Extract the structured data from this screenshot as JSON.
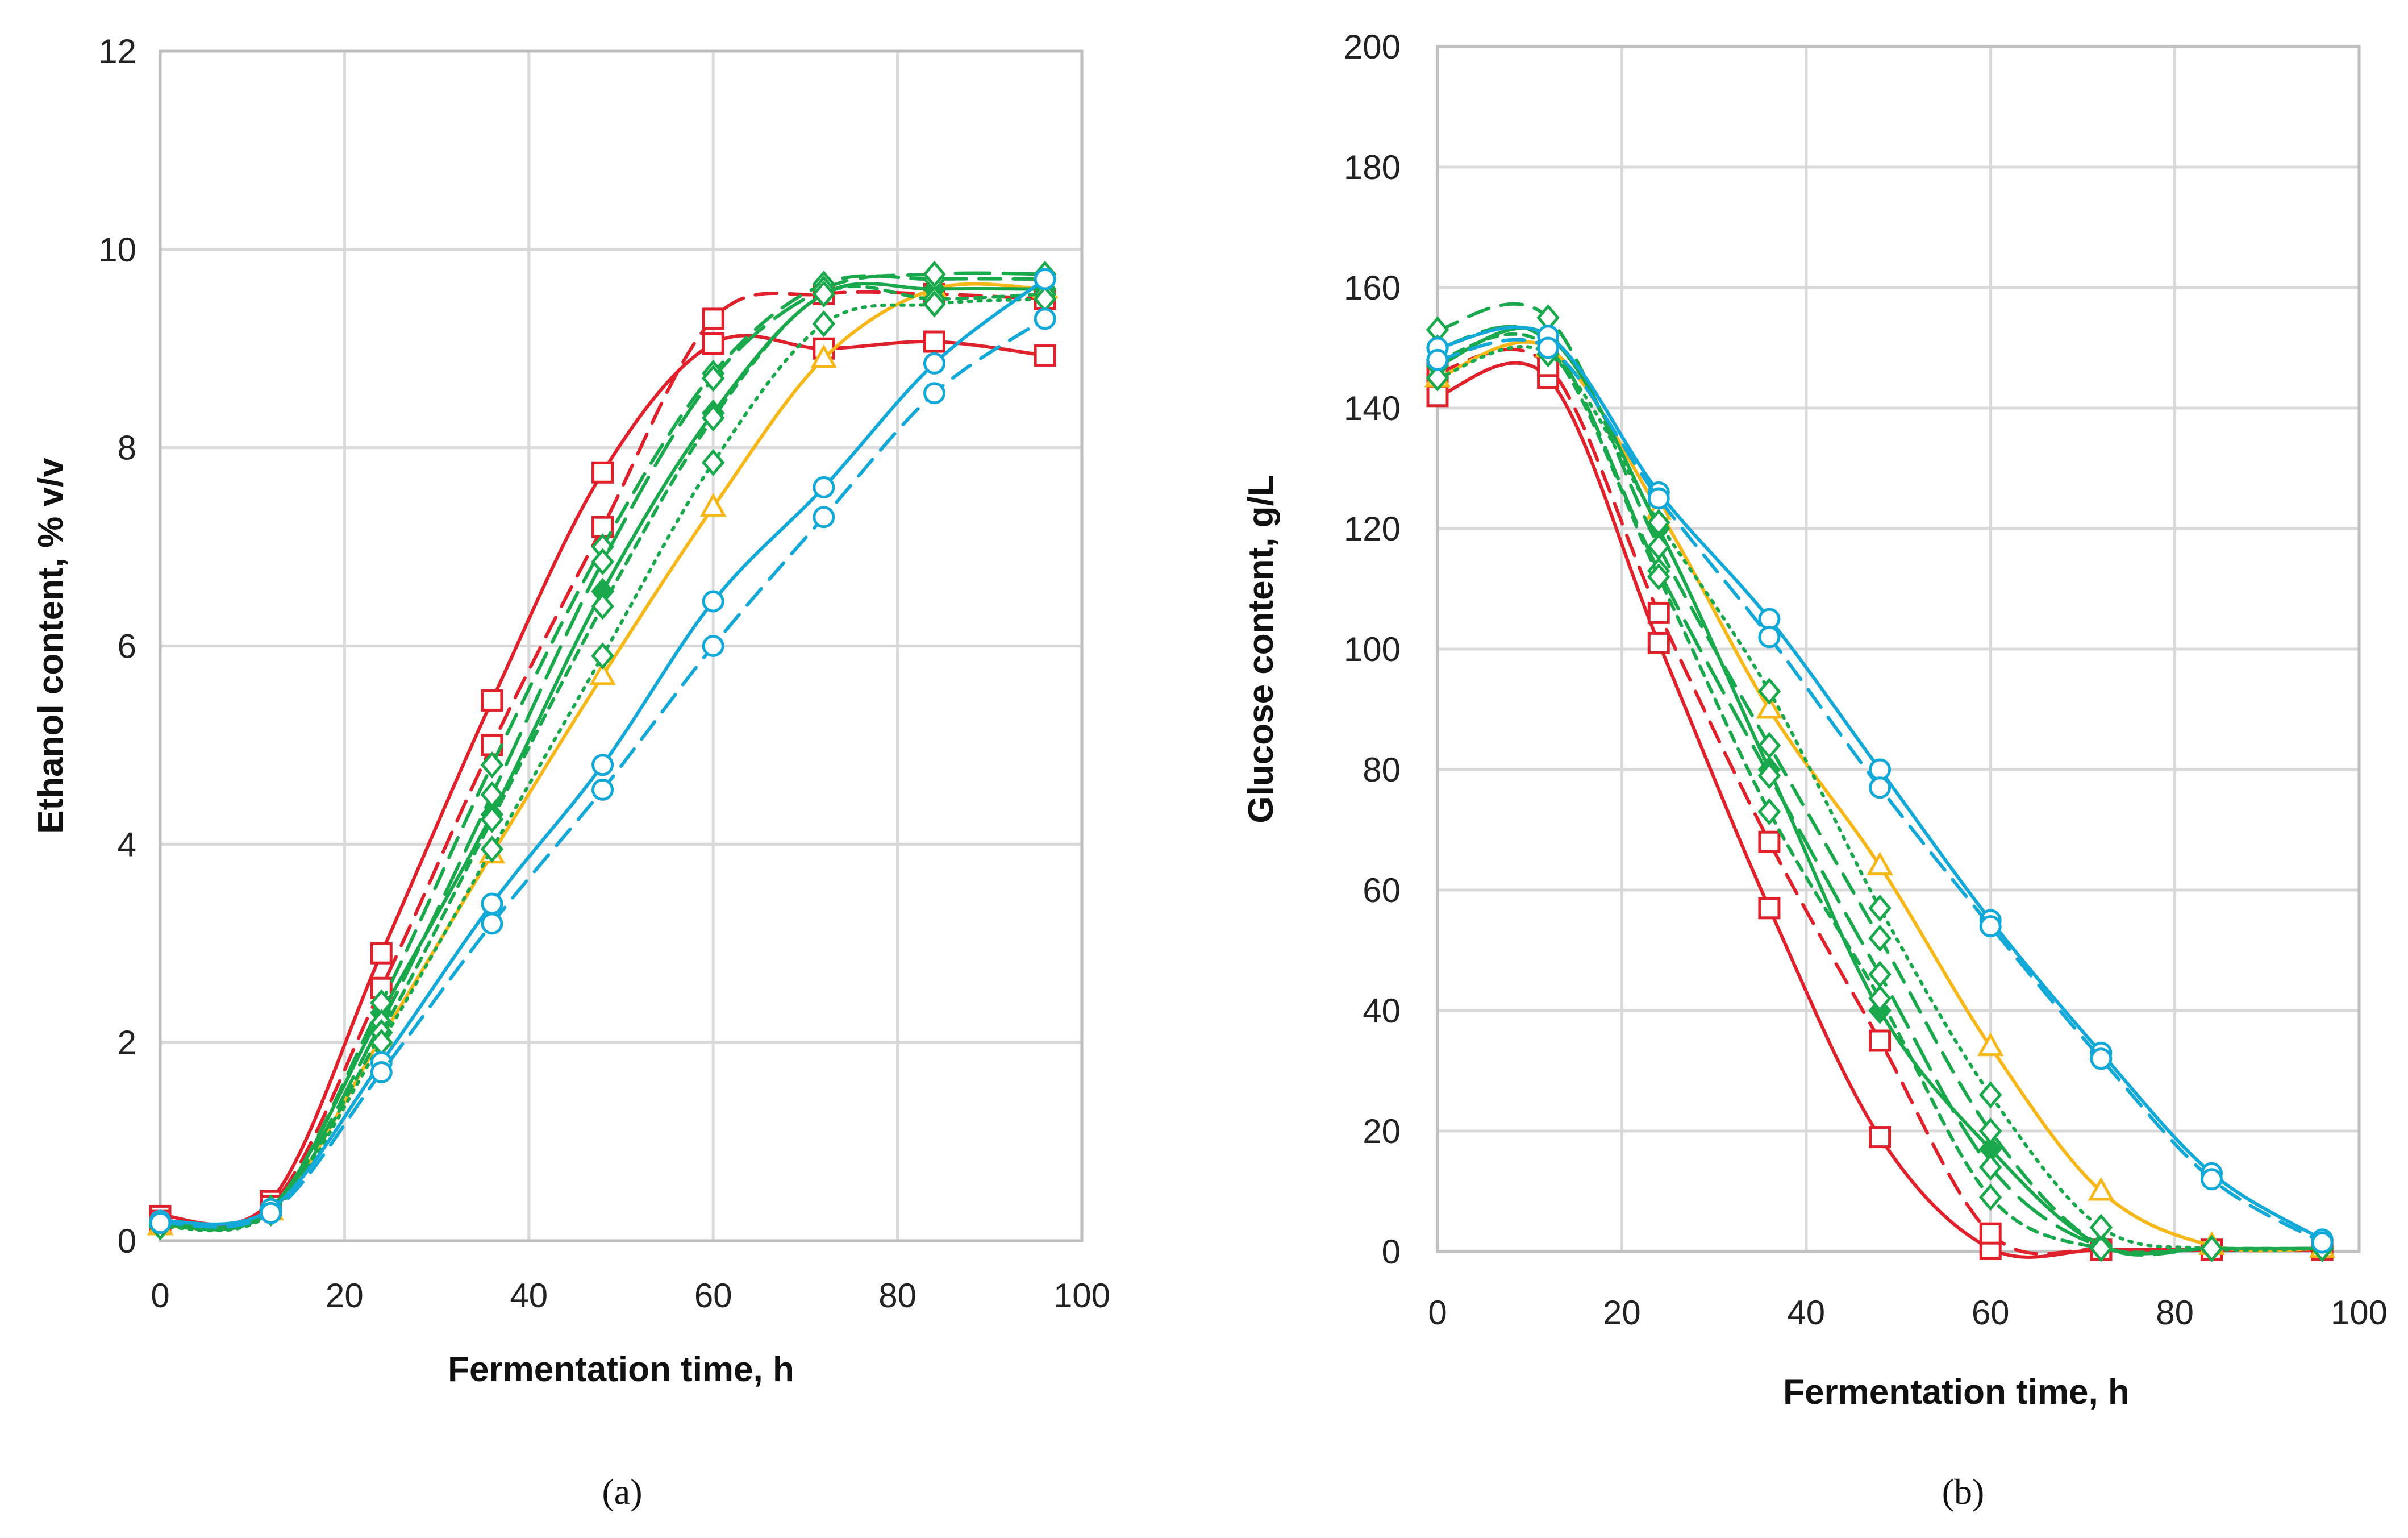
{
  "colors": {
    "red": "#e0202a",
    "orange": "#f7b718",
    "green": "#19a84c",
    "blue": "#12a8d8",
    "grid": "#d9d9d9",
    "text": "#222222"
  },
  "chart_data": [
    {
      "type": "line",
      "panel": "(a)",
      "xlabel": "Fermentation time, h",
      "ylabel": "Ethanol content, % v/v",
      "xlim": [
        0,
        100
      ],
      "ylim": [
        0,
        12
      ],
      "xticks": [
        0,
        20,
        40,
        60,
        80,
        100
      ],
      "yticks": [
        0,
        2,
        4,
        6,
        8,
        10,
        12
      ],
      "grid": true,
      "series": [
        {
          "name": "red-solid",
          "color": "red",
          "marker": "square",
          "dash": "solid",
          "x": [
            0,
            12,
            24,
            36,
            48,
            60,
            72,
            84,
            96
          ],
          "y": [
            0.25,
            0.4,
            2.9,
            5.45,
            7.75,
            9.05,
            9.0,
            9.07,
            8.93
          ]
        },
        {
          "name": "red-dashed",
          "color": "red",
          "marker": "square",
          "dash": "dashed",
          "x": [
            0,
            12,
            24,
            36,
            48,
            60,
            72,
            84,
            96
          ],
          "y": [
            0.2,
            0.35,
            2.55,
            5.0,
            7.2,
            9.3,
            9.55,
            9.55,
            9.5
          ]
        },
        {
          "name": "orange-solid",
          "color": "orange",
          "marker": "triangle",
          "dash": "solid",
          "x": [
            0,
            12,
            24,
            36,
            48,
            60,
            72,
            84,
            96
          ],
          "y": [
            0.15,
            0.3,
            2.05,
            3.9,
            5.7,
            7.4,
            8.9,
            9.6,
            9.6
          ]
        },
        {
          "name": "green-solid-filled",
          "color": "green",
          "marker": "diamond-filled",
          "dash": "solid",
          "x": [
            0,
            12,
            24,
            36,
            48,
            60,
            72,
            84,
            96
          ],
          "y": [
            0.18,
            0.33,
            2.3,
            4.3,
            6.55,
            8.35,
            9.55,
            9.6,
            9.6
          ]
        },
        {
          "name": "green-dashed",
          "color": "green",
          "marker": "diamond",
          "dash": "dashed",
          "x": [
            0,
            12,
            24,
            36,
            48,
            60,
            72,
            84,
            96
          ],
          "y": [
            0.17,
            0.32,
            2.4,
            4.8,
            7.0,
            8.75,
            9.65,
            9.7,
            9.7
          ]
        },
        {
          "name": "green-longdash",
          "color": "green",
          "marker": "diamond",
          "dash": "longdash",
          "x": [
            0,
            12,
            24,
            36,
            48,
            60,
            72,
            84,
            96
          ],
          "y": [
            0.16,
            0.31,
            2.2,
            4.5,
            6.85,
            8.7,
            9.6,
            9.75,
            9.75
          ]
        },
        {
          "name": "green-shortdash",
          "color": "green",
          "marker": "diamond",
          "dash": "shortdash",
          "x": [
            0,
            12,
            24,
            36,
            48,
            60,
            72,
            84,
            96
          ],
          "y": [
            0.15,
            0.3,
            2.1,
            4.25,
            6.4,
            8.3,
            9.55,
            9.5,
            9.55
          ]
        },
        {
          "name": "green-dotted",
          "color": "green",
          "marker": "diamond",
          "dash": "dotted",
          "x": [
            0,
            12,
            24,
            36,
            48,
            60,
            72,
            84,
            96
          ],
          "y": [
            0.14,
            0.28,
            2.0,
            3.95,
            5.9,
            7.85,
            9.25,
            9.45,
            9.5
          ]
        },
        {
          "name": "blue-solid",
          "color": "blue",
          "marker": "circle",
          "dash": "solid",
          "x": [
            0,
            12,
            24,
            36,
            48,
            60,
            72,
            84,
            96
          ],
          "y": [
            0.2,
            0.32,
            1.8,
            3.4,
            4.8,
            6.45,
            7.6,
            8.85,
            9.7
          ]
        },
        {
          "name": "blue-dashed",
          "color": "blue",
          "marker": "circle",
          "dash": "dashed",
          "x": [
            0,
            12,
            24,
            36,
            48,
            60,
            72,
            84,
            96
          ],
          "y": [
            0.18,
            0.28,
            1.7,
            3.2,
            4.55,
            6.0,
            7.3,
            8.55,
            9.3
          ]
        }
      ]
    },
    {
      "type": "line",
      "panel": "(b)",
      "xlabel": "Fermentation time, h",
      "ylabel": "Glucose content, g/L",
      "xlim": [
        0,
        100
      ],
      "ylim": [
        0,
        200
      ],
      "xticks": [
        0,
        20,
        40,
        60,
        80,
        100
      ],
      "yticks": [
        0,
        20,
        40,
        60,
        80,
        100,
        120,
        140,
        160,
        180,
        200
      ],
      "grid": true,
      "series": [
        {
          "name": "red-solid",
          "color": "red",
          "marker": "square",
          "dash": "solid",
          "x": [
            0,
            12,
            24,
            36,
            48,
            60,
            72,
            84,
            96
          ],
          "y": [
            142,
            145,
            101,
            57,
            19,
            0.5,
            0.3,
            0.3,
            0.3
          ]
        },
        {
          "name": "red-dashed",
          "color": "red",
          "marker": "square",
          "dash": "dashed",
          "x": [
            0,
            12,
            24,
            36,
            48,
            60,
            72,
            84,
            96
          ],
          "y": [
            146,
            147,
            106,
            68,
            35,
            3,
            0.3,
            0.3,
            0.3
          ]
        },
        {
          "name": "orange-solid",
          "color": "orange",
          "marker": "triangle",
          "dash": "solid",
          "x": [
            0,
            12,
            24,
            36,
            48,
            60,
            72,
            84,
            96
          ],
          "y": [
            145,
            150,
            123,
            90,
            64,
            34,
            10,
            1,
            0.5
          ]
        },
        {
          "name": "green-solid-filled",
          "color": "green",
          "marker": "diamond-filled",
          "dash": "solid",
          "x": [
            0,
            12,
            24,
            36,
            48,
            60,
            72,
            84,
            96
          ],
          "y": [
            147,
            152,
            120,
            80,
            40,
            17,
            1,
            0.5,
            0.5
          ]
        },
        {
          "name": "green-dashed",
          "color": "green",
          "marker": "diamond",
          "dash": "dashed",
          "x": [
            0,
            12,
            24,
            36,
            48,
            60,
            72,
            84,
            96
          ],
          "y": [
            153,
            155,
            117,
            84,
            52,
            20,
            1,
            0.5,
            0.5
          ]
        },
        {
          "name": "green-longdash",
          "color": "green",
          "marker": "diamond",
          "dash": "longdash",
          "x": [
            0,
            12,
            24,
            36,
            48,
            60,
            72,
            84,
            96
          ],
          "y": [
            150,
            151,
            113,
            79,
            46,
            14,
            0.8,
            0.5,
            0.5
          ]
        },
        {
          "name": "green-shortdash",
          "color": "green",
          "marker": "diamond",
          "dash": "shortdash",
          "x": [
            0,
            12,
            24,
            36,
            48,
            60,
            72,
            84,
            96
          ],
          "y": [
            148,
            150,
            112,
            73,
            42,
            9,
            0.5,
            0.5,
            0.5
          ]
        },
        {
          "name": "green-dotted",
          "color": "green",
          "marker": "diamond",
          "dash": "dotted",
          "x": [
            0,
            12,
            24,
            36,
            48,
            60,
            72,
            84,
            96
          ],
          "y": [
            145,
            149,
            121,
            93,
            57,
            26,
            4,
            0.5,
            0.5
          ]
        },
        {
          "name": "blue-solid",
          "color": "blue",
          "marker": "circle",
          "dash": "solid",
          "x": [
            0,
            12,
            24,
            36,
            48,
            60,
            72,
            84,
            96
          ],
          "y": [
            150,
            152,
            126,
            105,
            80,
            55,
            33,
            13,
            2
          ]
        },
        {
          "name": "blue-dashed",
          "color": "blue",
          "marker": "circle",
          "dash": "dashed",
          "x": [
            0,
            12,
            24,
            36,
            48,
            60,
            72,
            84,
            96
          ],
          "y": [
            148,
            150,
            125,
            102,
            77,
            54,
            32,
            12,
            1.5
          ]
        }
      ]
    }
  ]
}
